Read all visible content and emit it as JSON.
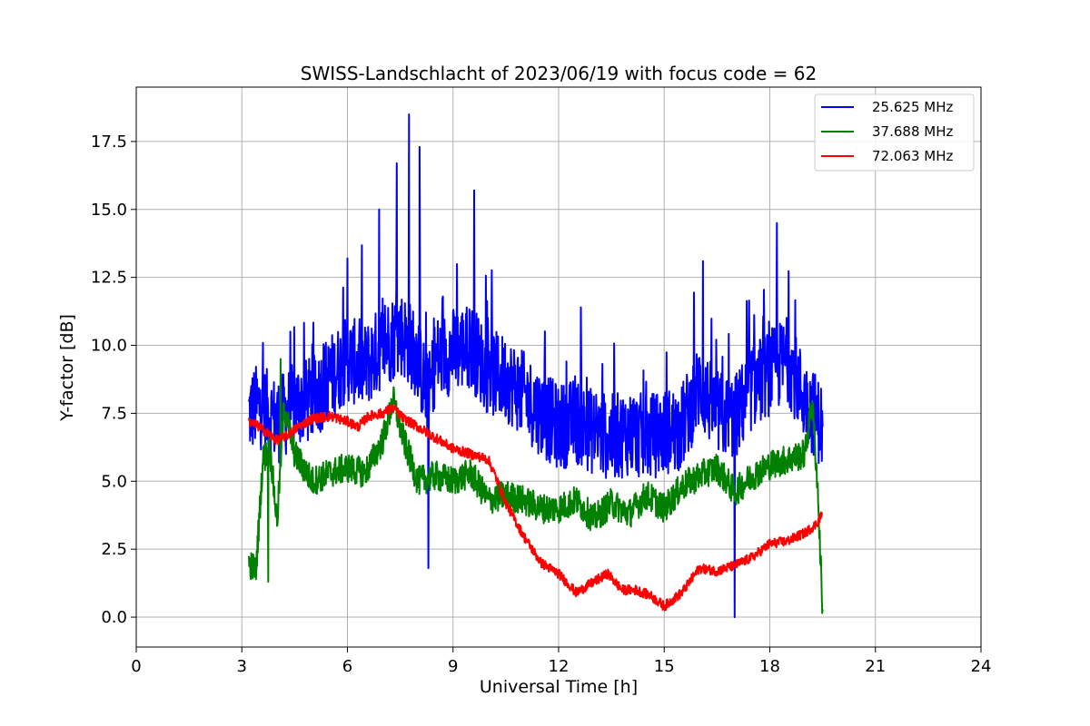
{
  "chart_data": {
    "type": "line",
    "title": "SWISS-Landschlacht of 2023/06/19 with focus code = 62",
    "xlabel": "Universal Time [h]",
    "ylabel": "Y-factor [dB]",
    "xlim": [
      0,
      24
    ],
    "ylim": [
      -1.1,
      19.5
    ],
    "xticks": [
      "0",
      "3",
      "6",
      "9",
      "12",
      "15",
      "18",
      "21",
      "24"
    ],
    "yticks": [
      "0.0",
      "2.5",
      "5.0",
      "7.5",
      "10.0",
      "12.5",
      "15.0",
      "17.5"
    ],
    "grid": true,
    "legend_position": "top-right",
    "series": [
      {
        "name": "25.625 MHz",
        "color": "#0000ff",
        "x": [
          3.2,
          3.5,
          4.0,
          4.5,
          5.0,
          5.5,
          6.0,
          6.5,
          7.0,
          7.5,
          7.8,
          8.0,
          8.3,
          8.5,
          9.0,
          9.5,
          10.0,
          10.5,
          11.0,
          11.5,
          12.0,
          12.5,
          13.0,
          13.5,
          14.0,
          14.5,
          15.0,
          15.5,
          16.0,
          16.5,
          17.0,
          17.5,
          18.0,
          18.5,
          19.0,
          19.5
        ],
        "y": [
          7.5,
          7.8,
          7.2,
          7.8,
          8.0,
          8.8,
          9.5,
          9.2,
          10.0,
          10.5,
          10.0,
          9.5,
          8.0,
          9.5,
          9.8,
          10.0,
          9.0,
          8.8,
          8.2,
          7.5,
          7.0,
          7.2,
          6.8,
          6.6,
          6.8,
          6.6,
          6.8,
          7.0,
          8.5,
          7.5,
          7.3,
          8.5,
          9.0,
          9.5,
          8.0,
          7.0
        ],
        "spikes": [
          [
            6.0,
            13.2
          ],
          [
            6.9,
            15.0
          ],
          [
            7.4,
            16.7
          ],
          [
            7.75,
            18.5
          ],
          [
            8.05,
            17.3
          ],
          [
            9.6,
            15.7
          ],
          [
            16.1,
            13.1
          ],
          [
            18.2,
            14.5
          ],
          [
            8.3,
            1.8
          ],
          [
            17.0,
            0.0
          ]
        ]
      },
      {
        "name": "37.688 MHz",
        "color": "#008000",
        "x": [
          3.2,
          3.4,
          3.6,
          3.8,
          4.0,
          4.2,
          4.5,
          5.0,
          5.5,
          6.0,
          6.5,
          7.0,
          7.3,
          7.6,
          8.0,
          8.5,
          9.0,
          9.5,
          10.0,
          10.5,
          11.0,
          11.5,
          12.0,
          12.5,
          13.0,
          13.5,
          14.0,
          14.5,
          15.0,
          15.5,
          16.0,
          16.5,
          17.0,
          17.5,
          18.0,
          18.5,
          19.0,
          19.2,
          19.35,
          19.5
        ],
        "y": [
          2.0,
          1.7,
          5.8,
          6.2,
          3.5,
          7.8,
          6.0,
          5.0,
          5.3,
          5.5,
          5.3,
          6.5,
          8.0,
          6.5,
          5.0,
          5.2,
          5.0,
          5.3,
          4.3,
          4.5,
          4.3,
          4.0,
          4.0,
          4.3,
          3.6,
          4.2,
          3.8,
          4.5,
          4.0,
          4.8,
          5.2,
          5.5,
          4.6,
          5.2,
          5.6,
          5.8,
          6.0,
          8.0,
          5.0,
          0.3
        ],
        "spikes": [
          [
            4.1,
            9.5
          ],
          [
            3.75,
            1.3
          ]
        ]
      },
      {
        "name": "72.063 MHz",
        "color": "#ff0000",
        "x": [
          3.2,
          3.5,
          4.0,
          4.3,
          4.6,
          5.0,
          5.5,
          6.0,
          6.3,
          6.6,
          7.0,
          7.3,
          7.6,
          8.0,
          8.5,
          9.0,
          9.5,
          10.0,
          10.2,
          10.5,
          11.0,
          11.5,
          12.0,
          12.5,
          13.0,
          13.4,
          13.8,
          14.2,
          14.6,
          15.0,
          15.5,
          16.0,
          16.5,
          17.0,
          17.5,
          18.0,
          18.5,
          19.0,
          19.3,
          19.5
        ],
        "y": [
          7.2,
          7.0,
          6.5,
          6.7,
          7.0,
          7.3,
          7.4,
          7.2,
          7.0,
          7.4,
          7.5,
          7.7,
          7.3,
          7.0,
          6.6,
          6.2,
          6.0,
          5.8,
          5.2,
          4.2,
          3.0,
          2.0,
          1.6,
          0.9,
          1.3,
          1.6,
          1.0,
          1.0,
          0.8,
          0.4,
          0.9,
          1.8,
          1.7,
          1.9,
          2.2,
          2.7,
          2.8,
          3.1,
          3.4,
          3.8
        ]
      }
    ]
  }
}
